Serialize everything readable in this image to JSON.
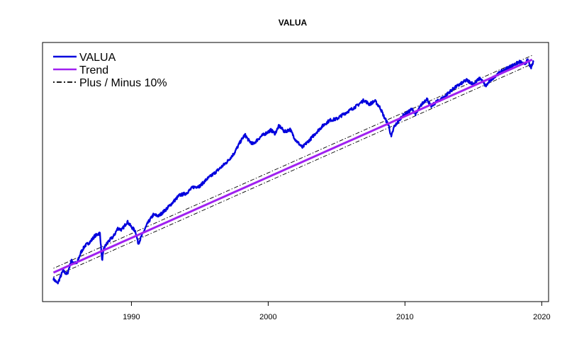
{
  "chart_data": {
    "type": "line",
    "title": "VALUA",
    "xlabel": "",
    "ylabel": "",
    "xlim": [
      1983.5,
      2020.5
    ],
    "ylim": [
      0,
      100
    ],
    "y_scale": "log",
    "y_ticks_shown": false,
    "x_ticks": [
      1990,
      2000,
      2010,
      2020
    ],
    "x_tick_labels": [
      "1990",
      "2000",
      "2010",
      "2020"
    ],
    "grid": false,
    "legend": {
      "position": "top-left",
      "entries": [
        {
          "label": "VALUA",
          "color": "#0000dd",
          "style": "solid"
        },
        {
          "label": "Trend",
          "color": "#a020f0",
          "style": "solid"
        },
        {
          "label": "Plus / Minus 10%",
          "color": "#000000",
          "style": "dashdot"
        }
      ]
    },
    "series": [
      {
        "name": "VALUA",
        "color": "#0000dd",
        "x": [
          1984.3,
          1984.6,
          1985.0,
          1985.3,
          1985.6,
          1986.0,
          1986.3,
          1986.6,
          1987.0,
          1987.3,
          1987.7,
          1987.85,
          1988.0,
          1988.3,
          1988.7,
          1989.0,
          1989.3,
          1989.7,
          1990.0,
          1990.3,
          1990.5,
          1990.8,
          1991.2,
          1991.6,
          1992.0,
          1992.5,
          1993.0,
          1993.5,
          1994.0,
          1994.5,
          1995.0,
          1995.5,
          1996.0,
          1996.5,
          1997.0,
          1997.5,
          1998.0,
          1998.3,
          1998.6,
          1998.9,
          1999.2,
          1999.5,
          1999.8,
          2000.2,
          2000.5,
          2000.8,
          2001.2,
          2001.6,
          2002.0,
          2002.5,
          2002.8,
          2003.1,
          2003.5,
          2004.0,
          2004.5,
          2005.0,
          2005.5,
          2006.0,
          2006.5,
          2007.0,
          2007.4,
          2007.8,
          2008.2,
          2008.5,
          2008.8,
          2009.0,
          2009.2,
          2009.5,
          2009.8,
          2010.2,
          2010.5,
          2010.8,
          2011.2,
          2011.6,
          2011.9,
          2012.3,
          2012.8,
          2013.2,
          2013.6,
          2014.0,
          2014.5,
          2015.0,
          2015.5,
          2015.9,
          2016.2,
          2016.6,
          2017.0,
          2017.5,
          2018.0,
          2018.4,
          2018.7,
          2019.0,
          2019.2,
          2019.4
        ],
        "y": [
          1.0,
          0.9,
          1.2,
          1.1,
          1.5,
          1.4,
          1.8,
          2.1,
          2.3,
          2.6,
          2.8,
          1.5,
          2.0,
          2.3,
          2.6,
          3.1,
          3.0,
          3.6,
          3.2,
          2.9,
          2.2,
          2.7,
          3.5,
          4.2,
          4.1,
          4.7,
          5.5,
          6.5,
          6.8,
          7.8,
          8.0,
          9.3,
          10.5,
          12.0,
          13.8,
          16.6,
          22.0,
          25.3,
          22.0,
          20.5,
          22.5,
          24.5,
          26.0,
          28.0,
          26.0,
          31.0,
          27.0,
          28.5,
          22.5,
          19.0,
          21.0,
          23.0,
          26.5,
          31.0,
          35.0,
          36.0,
          40.0,
          44.0,
          48.5,
          55.0,
          50.0,
          54.0,
          46.0,
          37.0,
          31.5,
          24.0,
          30.0,
          34.0,
          38.5,
          41.5,
          45.0,
          40.0,
          49.5,
          57.0,
          47.5,
          53.0,
          58.0,
          65.0,
          72.0,
          78.0,
          86.0,
          79.0,
          90.0,
          75.0,
          84.0,
          95.0,
          103.0,
          113.0,
          122.0,
          130.0,
          122.0,
          135.0,
          112.0,
          130.0
        ]
      },
      {
        "name": "Trend",
        "color": "#a020f0",
        "x": [
          1984.3,
          2019.4
        ],
        "y": [
          1.15,
          138.0
        ]
      },
      {
        "name": "Plus / Minus 10%",
        "color": "#000000",
        "style": "dashdot",
        "offset_pct": 10
      }
    ]
  }
}
